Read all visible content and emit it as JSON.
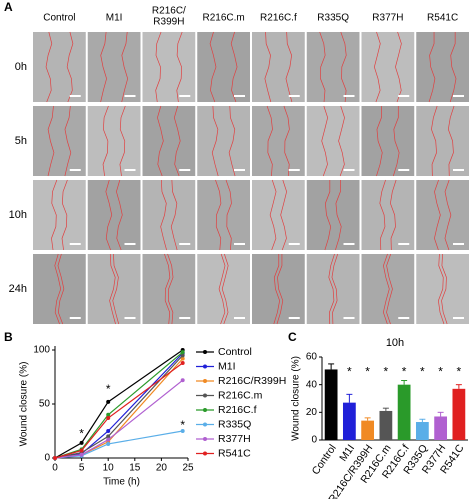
{
  "panel_a": {
    "label": "A",
    "columns": [
      "Control",
      "M1I",
      [
        "R216C/",
        "R399H"
      ],
      "R216C.m",
      "R216C.f",
      "R335Q",
      "R377H",
      "R541C"
    ],
    "rows": [
      "0h",
      "5h",
      "10h",
      "24h"
    ]
  },
  "chart_data": [
    {
      "type": "line",
      "panel_label": "B",
      "x_label": "Time (h)",
      "y_label": "Wound closure (%)",
      "x": [
        0,
        5,
        10,
        24
      ],
      "xlim": [
        0,
        25
      ],
      "xticks": [
        0,
        5,
        10,
        15,
        20,
        25
      ],
      "ylim": [
        0,
        100
      ],
      "yticks": [
        0,
        50,
        100
      ],
      "annotations": [
        "*",
        "*",
        "*"
      ],
      "series": [
        {
          "name": "Control",
          "color": "#000000",
          "values": [
            0,
            14,
            52,
            100
          ]
        },
        {
          "name": "M1I",
          "color": "#2020d8",
          "values": [
            0,
            4,
            25,
            97
          ]
        },
        {
          "name": "R216C/R399H",
          "color": "#f08a24",
          "values": [
            0,
            3,
            15,
            92
          ]
        },
        {
          "name": "R216C.m",
          "color": "#555555",
          "values": [
            0,
            5,
            20,
            95
          ]
        },
        {
          "name": "R216C.f",
          "color": "#2a9a2a",
          "values": [
            0,
            8,
            40,
            98
          ]
        },
        {
          "name": "R335Q",
          "color": "#5aaee8",
          "values": [
            0,
            2,
            13,
            25
          ]
        },
        {
          "name": "R377H",
          "color": "#b060d0",
          "values": [
            0,
            3,
            17,
            72
          ]
        },
        {
          "name": "R541C",
          "color": "#e02020",
          "values": [
            0,
            7,
            37,
            88
          ]
        }
      ]
    },
    {
      "type": "bar",
      "panel_label": "C",
      "title": "10h",
      "y_label": "Wound closure (%)",
      "categories": [
        "Control",
        "M1I",
        "R216C/R399H",
        "R216C.m",
        "R216C.f",
        "R335Q",
        "R377H",
        "R541C"
      ],
      "values": [
        51,
        27,
        14,
        21,
        40,
        13,
        17,
        37
      ],
      "errors": [
        4,
        6,
        2,
        2,
        3,
        2,
        3,
        3
      ],
      "colors": [
        "#000000",
        "#2020d8",
        "#f08a24",
        "#555555",
        "#2a9a2a",
        "#5aaee8",
        "#b060d0",
        "#e02020"
      ],
      "ylim": [
        0,
        60
      ],
      "yticks": [
        0,
        20,
        40,
        60
      ],
      "annotations": [
        "*",
        "*",
        "*",
        "*",
        "*",
        "*",
        "*"
      ]
    }
  ]
}
